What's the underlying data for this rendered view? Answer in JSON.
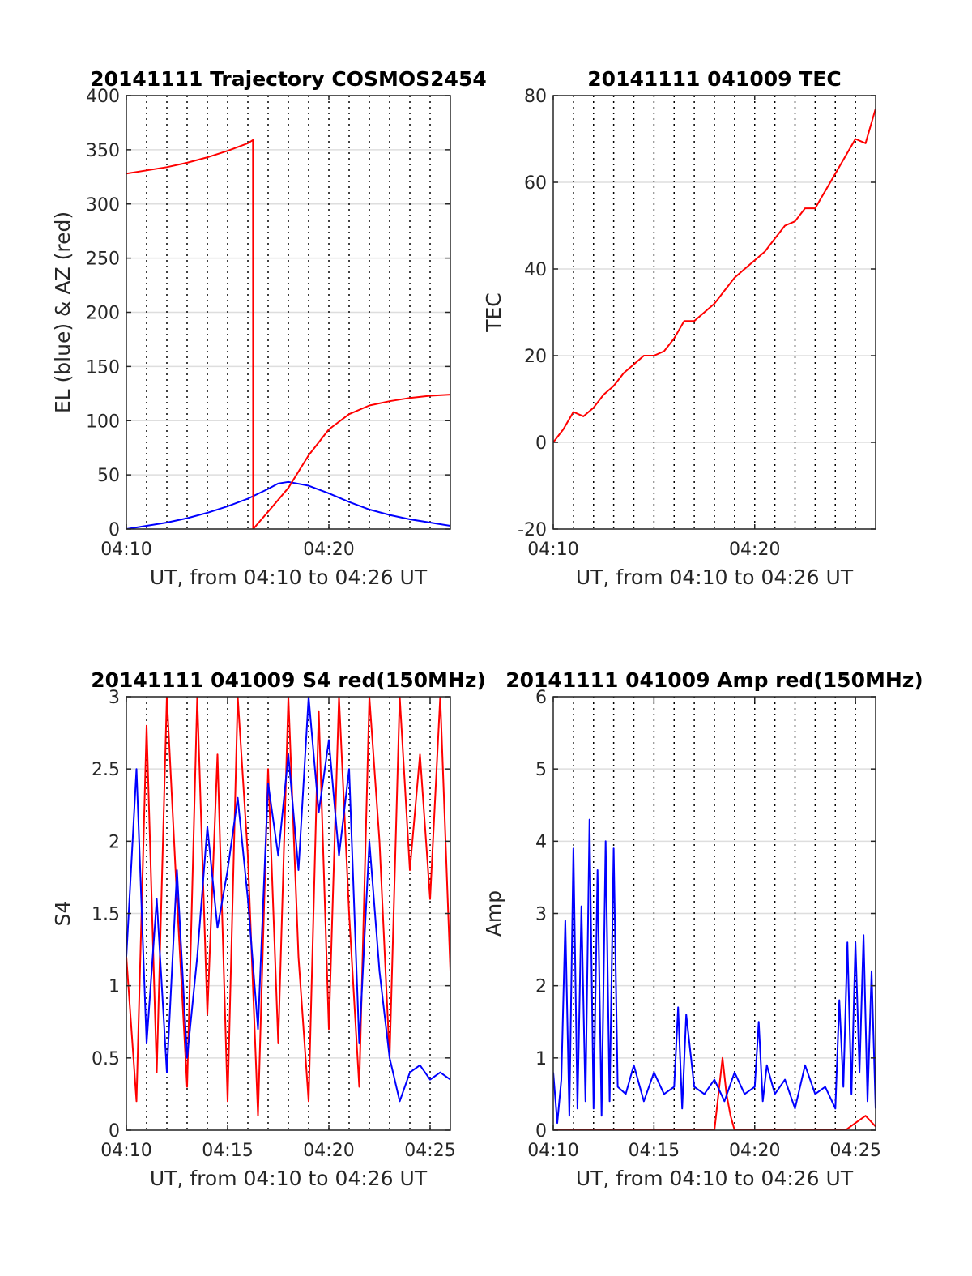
{
  "chart_data": [
    {
      "type": "line",
      "title": "20141111 Trajectory COSMOS2454",
      "xlabel": "UT, from 04:10 to 04:26 UT",
      "ylabel": "EL (blue) & AZ (red)",
      "xlim": [
        0,
        16
      ],
      "ylim": [
        0,
        400
      ],
      "x_ticks": [
        {
          "value": 0,
          "label": "04:10"
        },
        {
          "value": 10,
          "label": "04:20"
        }
      ],
      "y_ticks": [
        0,
        50,
        100,
        150,
        200,
        250,
        300,
        350,
        400
      ],
      "x_units": "minutes after 04:10 UT",
      "grid": "horizontal solid at y ticks, vertical dotted each minute",
      "series": [
        {
          "color": "#0000ff",
          "x": [
            0,
            1,
            2,
            3,
            4,
            5,
            6,
            7,
            7.5,
            8,
            9,
            10,
            11,
            12,
            13,
            14,
            15,
            16
          ],
          "values": [
            0,
            3,
            6,
            10,
            15,
            21,
            28,
            37,
            42,
            43.5,
            40,
            33,
            25,
            18,
            13,
            9,
            6,
            3
          ]
        },
        {
          "color": "#ff0000",
          "x": [
            0,
            1,
            2,
            3,
            4,
            5,
            6,
            6.25,
            6.26,
            7,
            8,
            9,
            10,
            11,
            12,
            13,
            14,
            15,
            16
          ],
          "values": [
            328,
            331,
            334,
            338,
            343,
            349,
            356,
            359,
            0,
            16,
            38,
            68,
            92,
            106,
            114,
            118,
            121,
            123,
            124
          ]
        }
      ]
    },
    {
      "type": "line",
      "title": "20141111 041009 TEC",
      "xlabel": "UT, from 04:10 to 04:26 UT",
      "ylabel": "TEC",
      "xlim": [
        0,
        16
      ],
      "ylim": [
        -20,
        80
      ],
      "x_ticks": [
        {
          "value": 0,
          "label": "04:10"
        },
        {
          "value": 10,
          "label": "04:20"
        }
      ],
      "y_ticks": [
        -20,
        0,
        20,
        40,
        60,
        80
      ],
      "x_units": "minutes after 04:10 UT",
      "grid": "horizontal solid at y ticks, vertical dotted each minute",
      "series": [
        {
          "color": "#ff0000",
          "x": [
            0,
            0.5,
            1,
            1.5,
            2,
            2.5,
            3,
            3.5,
            4,
            4.5,
            5,
            5.5,
            6,
            6.5,
            7,
            7.5,
            8,
            8.5,
            9,
            9.5,
            10,
            10.5,
            11,
            11.5,
            12,
            12.5,
            13,
            13.5,
            14,
            14.5,
            15,
            15.5,
            16
          ],
          "values": [
            0,
            3,
            7,
            6,
            8,
            11,
            13,
            16,
            18,
            20,
            20,
            21,
            24,
            28,
            28,
            30,
            32,
            35,
            38,
            40,
            42,
            44,
            47,
            50,
            51,
            54,
            54,
            58,
            62,
            66,
            70,
            69,
            77
          ]
        }
      ]
    },
    {
      "type": "line",
      "title": "20141111 041009 S4 red(150MHz)",
      "xlabel": "UT, from 04:10 to 04:26 UT",
      "ylabel": "S4",
      "xlim": [
        0,
        16
      ],
      "ylim": [
        0,
        3
      ],
      "x_ticks": [
        {
          "value": 0,
          "label": "04:10"
        },
        {
          "value": 5,
          "label": "04:15"
        },
        {
          "value": 10,
          "label": "04:20"
        },
        {
          "value": 15,
          "label": "04:25"
        }
      ],
      "y_ticks": [
        0,
        0.5,
        1,
        1.5,
        2,
        2.5,
        3
      ],
      "x_units": "minutes after 04:10 UT",
      "grid": "horizontal solid at y ticks, vertical dotted each minute",
      "series": [
        {
          "color": "#ff0000",
          "x": [
            0,
            0.5,
            1,
            1.5,
            2,
            2.5,
            3,
            3.5,
            4,
            4.5,
            5,
            5.5,
            6,
            6.5,
            7,
            7.5,
            8,
            8.5,
            9,
            9.5,
            10,
            10.5,
            11,
            11.5,
            12,
            12.5,
            13,
            13.5,
            14,
            14.5,
            15,
            15.5,
            16
          ],
          "values": [
            1.2,
            0.2,
            2.8,
            0.4,
            3.0,
            1.6,
            0.3,
            3.0,
            0.8,
            2.6,
            0.2,
            3.0,
            1.9,
            0.1,
            2.5,
            0.6,
            3.0,
            1.2,
            0.2,
            2.9,
            0.7,
            3.0,
            1.5,
            0.3,
            3.0,
            2.0,
            0.5,
            3.0,
            1.8,
            2.6,
            1.6,
            3.0,
            1.1
          ]
        },
        {
          "color": "#0000ff",
          "x": [
            0,
            0.5,
            1,
            1.5,
            2,
            2.5,
            3,
            3.5,
            4,
            4.5,
            5,
            5.5,
            6,
            6.5,
            7,
            7.5,
            8,
            8.5,
            9,
            9.5,
            10,
            10.5,
            11,
            11.5,
            12,
            12.5,
            13,
            13.5,
            14,
            14.5,
            15,
            15.5,
            16
          ],
          "values": [
            1.2,
            2.5,
            0.6,
            1.6,
            0.4,
            1.8,
            0.5,
            1.2,
            2.1,
            1.4,
            1.8,
            2.3,
            1.6,
            0.7,
            2.4,
            1.9,
            2.6,
            1.8,
            3.0,
            2.2,
            2.7,
            1.9,
            2.5,
            0.6,
            2.0,
            1.1,
            0.5,
            0.2,
            0.4,
            0.45,
            0.35,
            0.4,
            0.35
          ]
        }
      ]
    },
    {
      "type": "line",
      "title": "20141111 041009 Amp red(150MHz)",
      "xlabel": "UT, from 04:10 to 04:26 UT",
      "ylabel": "Amp",
      "xlim": [
        0,
        16
      ],
      "ylim": [
        0,
        6
      ],
      "x_ticks": [
        {
          "value": 0,
          "label": "04:10"
        },
        {
          "value": 5,
          "label": "04:15"
        },
        {
          "value": 10,
          "label": "04:20"
        },
        {
          "value": 15,
          "label": "04:25"
        }
      ],
      "y_ticks": [
        0,
        1,
        2,
        3,
        4,
        5,
        6
      ],
      "x_units": "minutes after 04:10 UT",
      "grid": "horizontal solid at y ticks, vertical dotted each minute",
      "series": [
        {
          "color": "#ff0000",
          "x": [
            0,
            3,
            8,
            8.2,
            8.4,
            8.6,
            8.8,
            9,
            14.5,
            15,
            15.5,
            16
          ],
          "values": [
            0,
            0,
            0,
            0.5,
            1.0,
            0.5,
            0.2,
            0,
            0,
            0.1,
            0.2,
            0.05
          ]
        },
        {
          "color": "#0000ff",
          "x": [
            0,
            0.2,
            0.4,
            0.6,
            0.8,
            1,
            1.2,
            1.4,
            1.6,
            1.8,
            2,
            2.2,
            2.4,
            2.6,
            2.8,
            3,
            3.2,
            3.6,
            4,
            4.5,
            5,
            5.5,
            6,
            6.2,
            6.4,
            6.6,
            7,
            7.5,
            8,
            8.5,
            9,
            9.5,
            10,
            10.2,
            10.4,
            10.6,
            11,
            11.5,
            12,
            12.5,
            13,
            13.5,
            14,
            14.2,
            14.4,
            14.6,
            14.8,
            15,
            15.2,
            15.4,
            15.6,
            15.8,
            16
          ],
          "values": [
            0.8,
            0.1,
            0.7,
            2.9,
            0.2,
            3.9,
            0.3,
            3.1,
            0.4,
            4.3,
            0.3,
            3.6,
            0.2,
            4.0,
            0.4,
            3.9,
            0.6,
            0.5,
            0.9,
            0.4,
            0.8,
            0.5,
            0.6,
            1.7,
            0.3,
            1.6,
            0.6,
            0.5,
            0.7,
            0.4,
            0.8,
            0.5,
            0.6,
            1.5,
            0.4,
            0.9,
            0.5,
            0.7,
            0.3,
            0.9,
            0.5,
            0.6,
            0.3,
            1.8,
            0.6,
            2.6,
            0.5,
            2.6,
            0.8,
            2.7,
            0.4,
            2.2,
            0.3
          ]
        }
      ]
    }
  ]
}
